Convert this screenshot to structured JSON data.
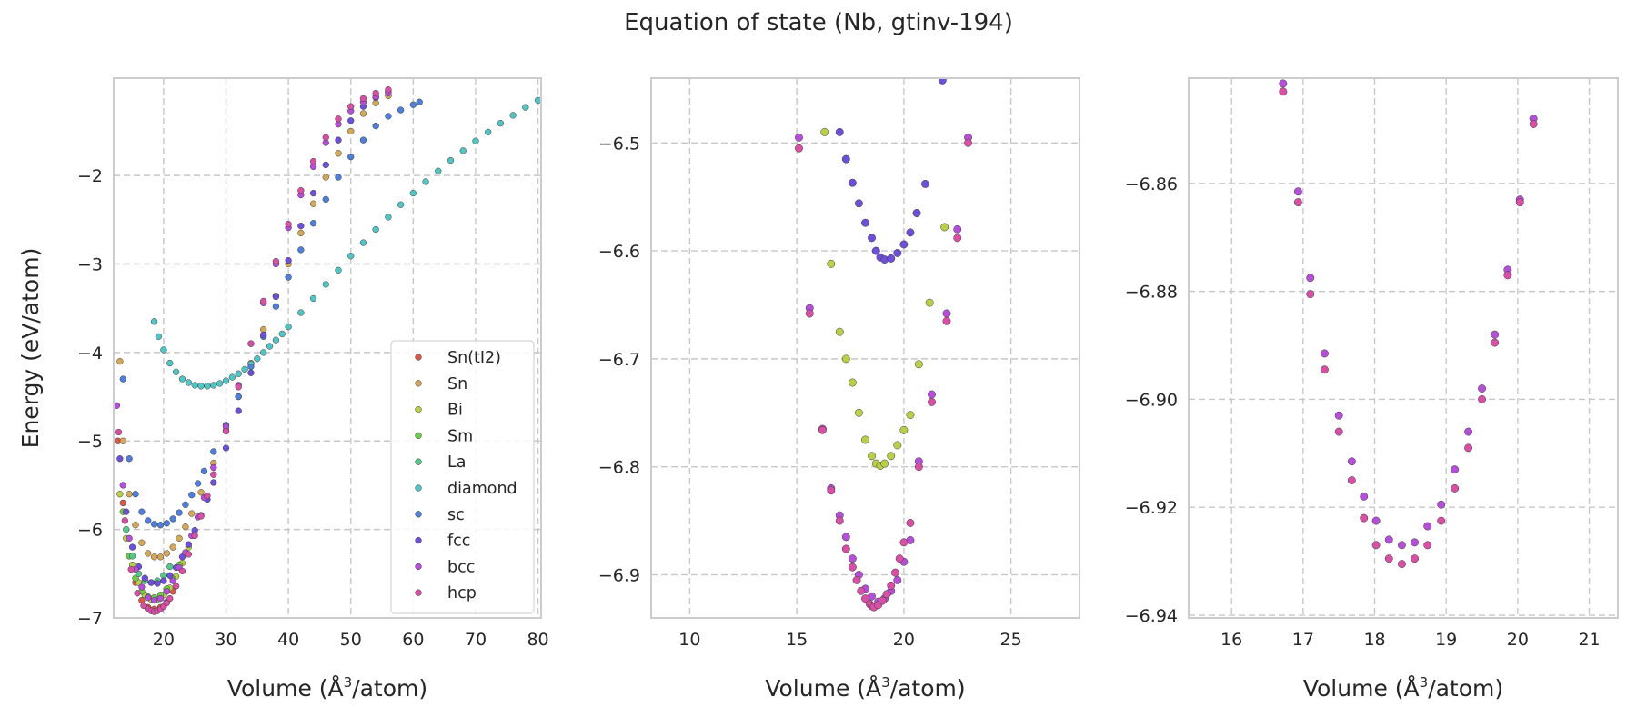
{
  "figure": {
    "title": "Equation of state (Nb, gtinv-194)"
  },
  "colors": {
    "Sn(tI2)": "#d9574a",
    "Sn": "#d4a85a",
    "Bi": "#b8cf4a",
    "Sm": "#6fcb4a",
    "La": "#55c98c",
    "diamond": "#52c4c4",
    "sc": "#4f7fd8",
    "fcc": "#6e4fd8",
    "bcc": "#b54fd8",
    "hcp": "#d84fa6"
  },
  "chart_data": [
    {
      "type": "scatter",
      "title": "",
      "xlabel": "Volume (Å³/atom)",
      "ylabel": "Energy (eV/atom)",
      "xlim": [
        12,
        80.5
      ],
      "ylim": [
        -7.0,
        -0.9
      ],
      "xticks": [
        20,
        30,
        40,
        50,
        60,
        70,
        80
      ],
      "yticks": [
        -7,
        -6,
        -5,
        -4,
        -3,
        -2
      ],
      "ytick_labels": [
        "−7",
        "−6",
        "−5",
        "−4",
        "−3",
        "−2"
      ],
      "grid": true,
      "legend": {
        "position": "lower-right",
        "entries": [
          "Sn(tI2)",
          "Sn",
          "Bi",
          "Sm",
          "La",
          "diamond",
          "sc",
          "fcc",
          "bcc",
          "hcp"
        ]
      },
      "series": [
        {
          "name": "Sn(tI2)",
          "x": [
            12.7,
            13.5,
            14.5,
            15.5,
            16.5,
            17.5,
            18.5,
            19.5,
            20.5,
            21.5
          ],
          "y": [
            -5.0,
            -5.7,
            -6.3,
            -6.6,
            -6.8,
            -6.88,
            -6.9,
            -6.88,
            -6.82,
            -6.7
          ]
        },
        {
          "name": "Sn",
          "x": [
            13.0,
            13.5,
            14.5,
            15.5,
            16.5,
            17.5,
            18.5,
            19.5,
            20.5,
            21.5,
            22.5,
            23.5,
            24.5,
            26,
            28,
            30,
            32,
            34,
            36,
            38,
            40,
            42,
            44,
            46,
            48,
            50,
            52,
            54,
            56
          ],
          "y": [
            -4.1,
            -5.0,
            -5.6,
            -5.95,
            -6.15,
            -6.27,
            -6.31,
            -6.31,
            -6.27,
            -6.2,
            -6.1,
            -5.97,
            -5.82,
            -5.58,
            -5.25,
            -4.88,
            -4.5,
            -4.12,
            -3.74,
            -3.36,
            -3.0,
            -2.65,
            -2.32,
            -2.02,
            -1.75,
            -1.5,
            -1.3,
            -1.18,
            -1.1
          ]
        },
        {
          "name": "Bi",
          "x": [
            13.0,
            14.0,
            15.0,
            16.0,
            17.0,
            18.0,
            19.0,
            20.0,
            21.0,
            22.0,
            23.0,
            24.0
          ],
          "y": [
            -5.6,
            -6.1,
            -6.4,
            -6.6,
            -6.74,
            -6.79,
            -6.79,
            -6.74,
            -6.66,
            -6.53,
            -6.38,
            -6.2
          ]
        },
        {
          "name": "Sm",
          "x": [
            13.5,
            14.5,
            15.5,
            16.5,
            17.5,
            18.5,
            19.5,
            20.5,
            21.5,
            22.5
          ],
          "y": [
            -5.8,
            -6.3,
            -6.55,
            -6.7,
            -6.76,
            -6.77,
            -6.74,
            -6.67,
            -6.56,
            -6.4
          ]
        },
        {
          "name": "La",
          "x": [
            14.0,
            15.0,
            16.0,
            17.0,
            18.0,
            19.0,
            20.0,
            21.0
          ],
          "y": [
            -6.0,
            -6.3,
            -6.5,
            -6.58,
            -6.6,
            -6.58,
            -6.52,
            -6.42
          ]
        },
        {
          "name": "diamond",
          "x": [
            18.5,
            19.2,
            20,
            21,
            22,
            23,
            24,
            25,
            26,
            27,
            28,
            29,
            30,
            31,
            32,
            33,
            34,
            35,
            36,
            37,
            38,
            39,
            40,
            42,
            44,
            46,
            48,
            50,
            52,
            54,
            56,
            58,
            60,
            62,
            64,
            66,
            68,
            70,
            72,
            74,
            76,
            78,
            80
          ],
          "y": [
            -3.65,
            -3.82,
            -3.97,
            -4.12,
            -4.22,
            -4.3,
            -4.34,
            -4.37,
            -4.38,
            -4.38,
            -4.37,
            -4.35,
            -4.32,
            -4.28,
            -4.24,
            -4.19,
            -4.13,
            -4.07,
            -4.0,
            -3.93,
            -3.86,
            -3.79,
            -3.71,
            -3.55,
            -3.39,
            -3.23,
            -3.07,
            -2.91,
            -2.76,
            -2.61,
            -2.47,
            -2.33,
            -2.2,
            -2.07,
            -1.95,
            -1.83,
            -1.72,
            -1.61,
            -1.51,
            -1.41,
            -1.32,
            -1.23,
            -1.15
          ]
        },
        {
          "name": "sc",
          "x": [
            13.5,
            14.5,
            15.5,
            16.5,
            17.5,
            18.5,
            19.5,
            20.5,
            21.5,
            22.5,
            23.5,
            24.5,
            25.5,
            26.5,
            28,
            30,
            32,
            34,
            36,
            38,
            40,
            42,
            44,
            46,
            48,
            50,
            52,
            54,
            56,
            58,
            60,
            61
          ],
          "y": [
            -4.3,
            -5.2,
            -5.6,
            -5.8,
            -5.9,
            -5.94,
            -5.95,
            -5.93,
            -5.88,
            -5.81,
            -5.72,
            -5.61,
            -5.48,
            -5.34,
            -5.12,
            -4.82,
            -4.5,
            -4.16,
            -3.82,
            -3.48,
            -3.15,
            -2.84,
            -2.54,
            -2.27,
            -2.02,
            -1.79,
            -1.6,
            -1.44,
            -1.33,
            -1.26,
            -1.2,
            -1.17
          ]
        },
        {
          "name": "fcc",
          "x": [
            13.0,
            14.0,
            15.0,
            16.0,
            17.0,
            18.0,
            19.0,
            20.0,
            21.0,
            22.0,
            23.0,
            24.0,
            25.0,
            26.0,
            27.0,
            28.0,
            30,
            32,
            34,
            36,
            38,
            40,
            42,
            44,
            46,
            48,
            50,
            52,
            54,
            56
          ],
          "y": [
            -5.2,
            -5.8,
            -6.2,
            -6.42,
            -6.55,
            -6.6,
            -6.61,
            -6.58,
            -6.52,
            -6.43,
            -6.31,
            -6.17,
            -6.01,
            -5.84,
            -5.66,
            -5.47,
            -5.08,
            -4.66,
            -4.23,
            -3.8,
            -3.37,
            -2.96,
            -2.57,
            -2.2,
            -1.88,
            -1.6,
            -1.38,
            -1.22,
            -1.12,
            -1.05
          ]
        },
        {
          "name": "bcc",
          "x": [
            12.5,
            13.5,
            14.5,
            15.5,
            16.5,
            17.5,
            18.5,
            19.5,
            20.5,
            21.5,
            22.5,
            23.5,
            24.5,
            25.5,
            26.5,
            28,
            30,
            32,
            34,
            36,
            38,
            40,
            42,
            44,
            46,
            48,
            50,
            52,
            54,
            56
          ],
          "y": [
            -4.6,
            -5.5,
            -6.1,
            -6.45,
            -6.65,
            -6.77,
            -6.8,
            -6.78,
            -6.7,
            -6.58,
            -6.43,
            -6.26,
            -6.07,
            -5.86,
            -5.64,
            -5.3,
            -4.84,
            -4.37,
            -3.9,
            -3.44,
            -3.0,
            -2.59,
            -2.22,
            -1.9,
            -1.63,
            -1.42,
            -1.27,
            -1.17,
            -1.11,
            -1.07
          ]
        },
        {
          "name": "hcp",
          "x": [
            12.8,
            13.8,
            14.8,
            15.8,
            16.8,
            17.5,
            18.0,
            18.5,
            19.0,
            19.5,
            20.0,
            20.5,
            21.0,
            22.0,
            23.0,
            24.0,
            25.0,
            26.0,
            27.0,
            28.0,
            30,
            32,
            34,
            36,
            38,
            40,
            42,
            44,
            46,
            48,
            50,
            52,
            54,
            56
          ],
          "y": [
            -4.9,
            -5.9,
            -6.45,
            -6.72,
            -6.86,
            -6.9,
            -6.92,
            -6.93,
            -6.92,
            -6.9,
            -6.87,
            -6.83,
            -6.78,
            -6.64,
            -6.47,
            -6.28,
            -6.07,
            -5.85,
            -5.62,
            -5.38,
            -4.89,
            -4.39,
            -3.9,
            -3.42,
            -2.97,
            -2.55,
            -2.17,
            -1.84,
            -1.57,
            -1.36,
            -1.22,
            -1.13,
            -1.07,
            -1.03
          ]
        }
      ]
    },
    {
      "type": "scatter",
      "title": "",
      "xlabel": "Volume (Å³/atom)",
      "ylabel": "",
      "xlim": [
        8.2,
        28.2
      ],
      "ylim": [
        -6.94,
        -6.44
      ],
      "xticks": [
        10,
        15,
        20,
        25
      ],
      "yticks": [
        -6.9,
        -6.8,
        -6.7,
        -6.6,
        -6.5
      ],
      "ytick_labels": [
        "−6.9",
        "−6.8",
        "−6.7",
        "−6.6",
        "−6.5"
      ],
      "grid": true,
      "series": [
        {
          "name": "fcc",
          "x": [
            17.0,
            17.3,
            17.6,
            17.9,
            18.2,
            18.5,
            18.7,
            18.9,
            19.1,
            19.4,
            19.7,
            20.0,
            20.3,
            20.6,
            21.0,
            21.8
          ],
          "y": [
            -6.49,
            -6.515,
            -6.537,
            -6.556,
            -6.574,
            -6.588,
            -6.6,
            -6.606,
            -6.608,
            -6.607,
            -6.602,
            -6.594,
            -6.583,
            -6.565,
            -6.538,
            -6.442
          ]
        },
        {
          "name": "Bi",
          "x": [
            16.3,
            16.6,
            17.0,
            17.3,
            17.6,
            17.9,
            18.2,
            18.5,
            18.7,
            18.9,
            19.1,
            19.4,
            19.7,
            20.0,
            20.3,
            20.7,
            21.2,
            21.9
          ],
          "y": [
            -6.49,
            -6.612,
            -6.675,
            -6.7,
            -6.722,
            -6.75,
            -6.775,
            -6.79,
            -6.797,
            -6.799,
            -6.797,
            -6.79,
            -6.78,
            -6.766,
            -6.752,
            -6.705,
            -6.648,
            -6.578
          ]
        },
        {
          "name": "bcc",
          "x": [
            15.1,
            15.6,
            16.2,
            16.6,
            17.0,
            17.3,
            17.6,
            17.9,
            18.2,
            18.5,
            18.8,
            19.1,
            19.4,
            19.7,
            20.0,
            20.3,
            20.7,
            21.3,
            22.0,
            22.5,
            23.0
          ],
          "y": [
            -6.495,
            -6.653,
            -6.765,
            -6.82,
            -6.845,
            -6.865,
            -6.885,
            -6.9,
            -6.913,
            -6.92,
            -6.925,
            -6.922,
            -6.915,
            -6.905,
            -6.888,
            -6.868,
            -6.795,
            -6.733,
            -6.658,
            -6.58,
            -6.495
          ]
        },
        {
          "name": "hcp",
          "x": [
            15.1,
            15.6,
            16.2,
            16.6,
            17.0,
            17.3,
            17.6,
            17.8,
            18.0,
            18.2,
            18.4,
            18.5,
            18.6,
            18.8,
            19.0,
            19.2,
            19.4,
            19.6,
            19.8,
            20.0,
            20.3,
            20.7,
            21.3,
            22.0,
            22.5,
            23.0
          ],
          "y": [
            -6.505,
            -6.658,
            -6.766,
            -6.822,
            -6.85,
            -6.876,
            -6.893,
            -6.905,
            -6.915,
            -6.922,
            -6.927,
            -6.929,
            -6.93,
            -6.928,
            -6.924,
            -6.918,
            -6.91,
            -6.898,
            -6.885,
            -6.87,
            -6.852,
            -6.8,
            -6.74,
            -6.665,
            -6.588,
            -6.5
          ]
        }
      ]
    },
    {
      "type": "scatter",
      "title": "",
      "xlabel": "Volume (Å³/atom)",
      "ylabel": "",
      "xlim": [
        15.4,
        21.4
      ],
      "ylim": [
        -6.9405,
        -6.8405
      ],
      "xticks": [
        16,
        17,
        18,
        19,
        20,
        21
      ],
      "yticks": [
        -6.94,
        -6.92,
        -6.9,
        -6.88,
        -6.86
      ],
      "ytick_labels": [
        "−6.94",
        "−6.92",
        "−6.90",
        "−6.88",
        "−6.86"
      ],
      "grid": true,
      "series": [
        {
          "name": "bcc",
          "x": [
            16.72,
            16.93,
            17.1,
            17.3,
            17.5,
            17.68,
            17.85,
            18.02,
            18.2,
            18.38,
            18.56,
            18.74,
            18.93,
            19.12,
            19.31,
            19.5,
            19.68,
            19.86,
            20.03,
            20.22
          ],
          "y": [
            -6.8415,
            -6.8615,
            -6.8775,
            -6.8915,
            -6.903,
            -6.9115,
            -6.918,
            -6.9225,
            -6.926,
            -6.927,
            -6.9265,
            -6.9235,
            -6.9195,
            -6.913,
            -6.906,
            -6.898,
            -6.888,
            -6.876,
            -6.863,
            -6.848
          ]
        },
        {
          "name": "hcp",
          "x": [
            16.72,
            16.93,
            17.1,
            17.3,
            17.5,
            17.68,
            17.85,
            18.02,
            18.2,
            18.38,
            18.56,
            18.74,
            18.93,
            19.12,
            19.31,
            19.5,
            19.68,
            19.86,
            20.03,
            20.22
          ],
          "y": [
            -6.843,
            -6.8635,
            -6.8805,
            -6.8945,
            -6.906,
            -6.915,
            -6.922,
            -6.927,
            -6.9295,
            -6.9305,
            -6.9295,
            -6.927,
            -6.9225,
            -6.9165,
            -6.909,
            -6.9,
            -6.8895,
            -6.877,
            -6.8635,
            -6.849
          ]
        }
      ]
    }
  ]
}
